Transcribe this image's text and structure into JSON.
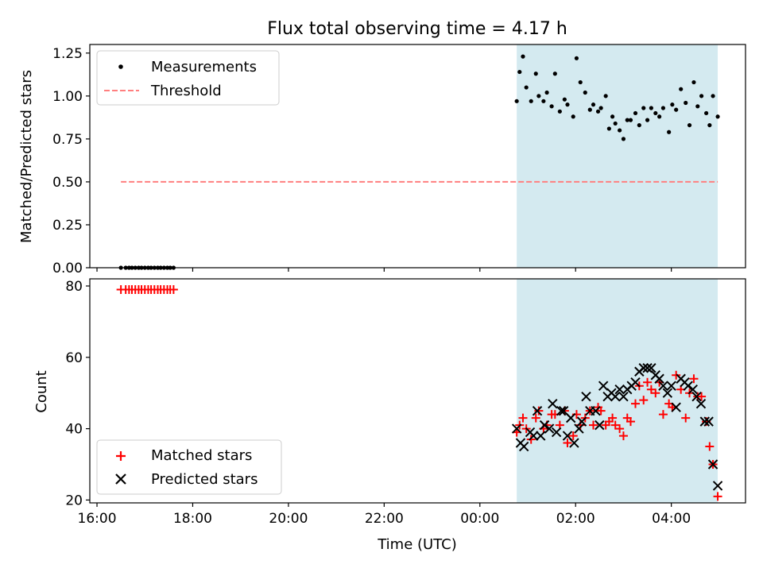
{
  "title": "Flux total observing time = 4.17 h",
  "colors": {
    "shade": "#d4eaf0",
    "threshold": "#ff7f7f",
    "matched": "#ff0000",
    "predicted": "#000000",
    "measurements": "#000000"
  },
  "chart_data": [
    {
      "type": "scatter",
      "name": "ratio-panel",
      "title": "Flux total observing time = 4.17 h",
      "xlabel": "",
      "ylabel": "Matched/Predicted stars",
      "xlim_hours": [
        15.85,
        29.55
      ],
      "ylim": [
        0,
        1.3
      ],
      "y_ticks": [
        0.0,
        0.25,
        0.5,
        0.75,
        1.0,
        1.25
      ],
      "y_tick_labels": [
        "0.00",
        "0.25",
        "0.50",
        "0.75",
        "1.00",
        "1.25"
      ],
      "x_ticks_hours": [
        16,
        18,
        20,
        22,
        24,
        26,
        28
      ],
      "shaded_interval_hours": [
        24.77,
        28.97
      ],
      "legend": {
        "position": "upper-left",
        "entries": [
          {
            "label": "Measurements",
            "marker": "dot"
          },
          {
            "label": "Threshold",
            "marker": "dashed-line"
          }
        ]
      },
      "threshold": {
        "label": "Threshold",
        "value": 0.5,
        "x_range_hours": [
          16.5,
          28.97
        ]
      },
      "series": [
        {
          "name": "Measurements",
          "marker": "dot",
          "x": [
            16.5,
            16.6,
            16.67,
            16.73,
            16.8,
            16.87,
            16.93,
            17.0,
            17.07,
            17.13,
            17.2,
            17.27,
            17.33,
            17.4,
            17.47,
            17.53,
            17.6,
            24.77,
            24.83,
            24.9,
            24.97,
            25.07,
            25.17,
            25.23,
            25.33,
            25.4,
            25.5,
            25.57,
            25.67,
            25.77,
            25.83,
            25.95,
            26.02,
            26.1,
            26.2,
            26.3,
            26.37,
            26.47,
            26.53,
            26.63,
            26.7,
            26.77,
            26.83,
            26.92,
            27.0,
            27.08,
            27.15,
            27.25,
            27.33,
            27.42,
            27.5,
            27.58,
            27.67,
            27.75,
            27.83,
            27.95,
            28.02,
            28.1,
            28.2,
            28.3,
            28.38,
            28.47,
            28.55,
            28.63,
            28.73,
            28.8,
            28.87,
            28.97
          ],
          "y": [
            0,
            0,
            0,
            0,
            0,
            0,
            0,
            0,
            0,
            0,
            0,
            0,
            0,
            0,
            0,
            0,
            0,
            0.97,
            1.14,
            1.23,
            1.05,
            0.97,
            1.13,
            1.0,
            0.97,
            1.02,
            0.94,
            1.13,
            0.91,
            0.98,
            0.95,
            0.88,
            1.22,
            1.08,
            1.02,
            0.92,
            0.95,
            0.91,
            0.93,
            1.0,
            0.81,
            0.88,
            0.84,
            0.8,
            0.75,
            0.86,
            0.86,
            0.9,
            0.83,
            0.93,
            0.86,
            0.93,
            0.9,
            0.88,
            0.93,
            0.79,
            0.95,
            0.92,
            1.04,
            0.96,
            0.83,
            1.08,
            0.94,
            1.0,
            0.9,
            0.83,
            1.0,
            0.88
          ]
        }
      ]
    },
    {
      "type": "scatter",
      "name": "count-panel",
      "xlabel": "Time (UTC)",
      "ylabel": "Count",
      "xlim_hours": [
        15.85,
        29.55
      ],
      "ylim": [
        19.2,
        82
      ],
      "y_ticks": [
        20,
        40,
        60,
        80
      ],
      "y_tick_labels": [
        "20",
        "40",
        "60",
        "80"
      ],
      "x_ticks_hours": [
        16,
        18,
        20,
        22,
        24,
        26,
        28
      ],
      "x_tick_labels": [
        "16:00",
        "18:00",
        "20:00",
        "22:00",
        "00:00",
        "02:00",
        "04:00"
      ],
      "shaded_interval_hours": [
        24.77,
        28.97
      ],
      "legend": {
        "position": "lower-left",
        "entries": [
          {
            "label": "Matched stars",
            "marker": "plus"
          },
          {
            "label": "Predicted stars",
            "marker": "x"
          }
        ]
      },
      "series": [
        {
          "name": "Matched stars",
          "marker": "plus",
          "x": [
            16.5,
            16.6,
            16.67,
            16.73,
            16.8,
            16.87,
            16.93,
            17.0,
            17.07,
            17.13,
            17.2,
            17.27,
            17.33,
            17.4,
            17.47,
            17.53,
            17.6,
            24.77,
            24.83,
            24.9,
            24.97,
            25.07,
            25.17,
            25.23,
            25.33,
            25.4,
            25.5,
            25.57,
            25.67,
            25.77,
            25.83,
            25.95,
            26.02,
            26.1,
            26.2,
            26.3,
            26.37,
            26.47,
            26.53,
            26.63,
            26.7,
            26.77,
            26.83,
            26.92,
            27.0,
            27.08,
            27.15,
            27.25,
            27.33,
            27.42,
            27.5,
            27.58,
            27.67,
            27.75,
            27.83,
            27.95,
            28.02,
            28.1,
            28.2,
            28.3,
            28.38,
            28.47,
            28.55,
            28.63,
            28.73,
            28.8,
            28.87,
            28.97
          ],
          "y": [
            79,
            79,
            79,
            79,
            79,
            79,
            79,
            79,
            79,
            79,
            79,
            79,
            79,
            79,
            79,
            79,
            79,
            39,
            41,
            43,
            40,
            37,
            43,
            45,
            40,
            41,
            44,
            44,
            41,
            45,
            36,
            38,
            44,
            41,
            43,
            45,
            41,
            46,
            45,
            41,
            42,
            43,
            41,
            40,
            38,
            43,
            42,
            47,
            52,
            48,
            53,
            51,
            50,
            53,
            44,
            47,
            46,
            55,
            51,
            43,
            50,
            54,
            49,
            49,
            42,
            35,
            30,
            21
          ]
        },
        {
          "name": "Predicted stars",
          "marker": "x",
          "x": [
            24.77,
            24.85,
            24.92,
            25.05,
            25.12,
            25.2,
            25.27,
            25.35,
            25.45,
            25.52,
            25.6,
            25.7,
            25.75,
            25.83,
            25.9,
            25.97,
            26.07,
            26.13,
            26.22,
            26.3,
            26.42,
            26.5,
            26.58,
            26.67,
            26.75,
            26.83,
            26.92,
            27.0,
            27.08,
            27.17,
            27.25,
            27.33,
            27.42,
            27.5,
            27.58,
            27.67,
            27.75,
            27.83,
            27.92,
            28.0,
            28.1,
            28.2,
            28.28,
            28.35,
            28.45,
            28.53,
            28.62,
            28.7,
            28.78,
            28.87,
            28.97
          ],
          "y": [
            40,
            36,
            35,
            39,
            38,
            45,
            38,
            41,
            40,
            47,
            39,
            45,
            45,
            38,
            43,
            36,
            40,
            42,
            49,
            45,
            45,
            41,
            52,
            49,
            50,
            49,
            51,
            49,
            51,
            52,
            53,
            56,
            57,
            57,
            57,
            55,
            54,
            52,
            50,
            52,
            46,
            54,
            53,
            52,
            51,
            49,
            47,
            42,
            42,
            30,
            24
          ]
        }
      ]
    }
  ]
}
